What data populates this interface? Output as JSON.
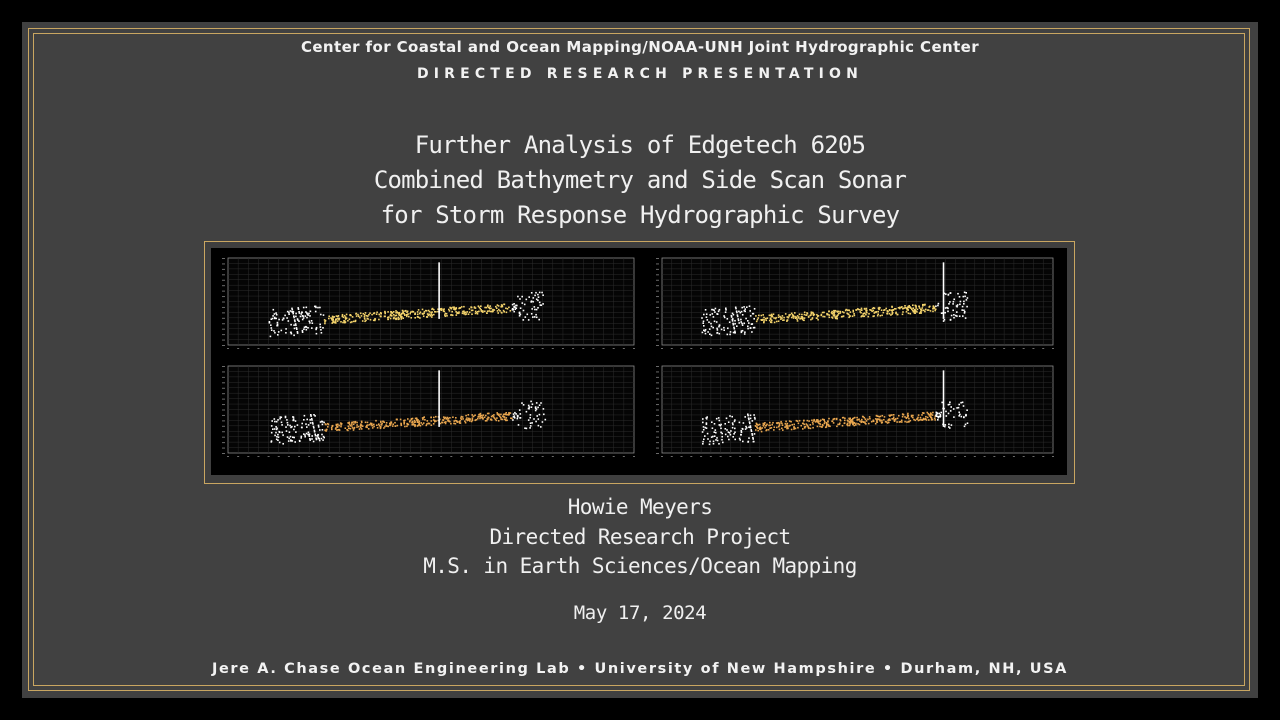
{
  "header": {
    "organization": "Center for Coastal and Ocean Mapping/NOAA-UNH Joint Hydrographic Center",
    "presentation_type": "DIRECTED RESEARCH PRESENTATION"
  },
  "title_lines": [
    "Further Analysis of Edgetech 6205",
    "Combined Bathymetry and Side Scan Sonar",
    "for Storm Response Hydrographic Survey"
  ],
  "author_lines": [
    "Howie Meyers",
    "Directed Research Project",
    "M.S. in Earth Sciences/Ocean Mapping"
  ],
  "date": "May 17, 2024",
  "footer": "Jere A. Chase Ocean Engineering Lab • University of New Hampshire • Durham, NH, USA",
  "colors": {
    "background": "#414141",
    "border_gold": "#c9a661",
    "text": "#f2f2f2",
    "point_white": "#ffffff",
    "point_yellow": "#f3d36b",
    "point_orange": "#e8a64f"
  },
  "figure": {
    "description_icon": "sonar-profile-plots",
    "panels": [
      {
        "id": "top-left",
        "accent": "#f3d36b"
      },
      {
        "id": "top-right",
        "accent": "#f3d36b"
      },
      {
        "id": "bottom-left",
        "accent": "#e8a64f"
      },
      {
        "id": "bottom-right",
        "accent": "#e8a64f"
      }
    ]
  }
}
